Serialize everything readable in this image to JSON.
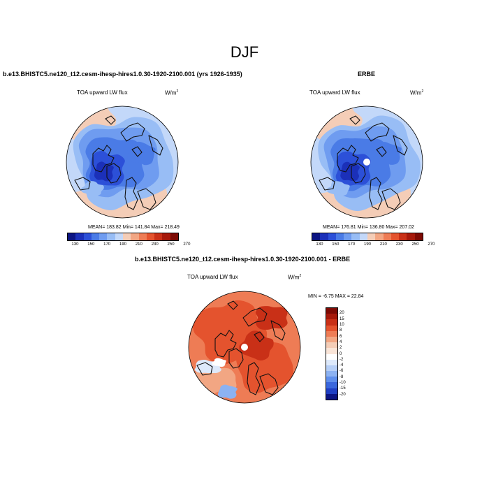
{
  "figure": {
    "title": "DJF"
  },
  "panels": [
    {
      "title": "b.e13.BHISTC5.ne120_t12.cesm-ihesp-hires1.0.30-1920-2100.001 (yrs 1926-1935)",
      "left_label": "TOA upward LW flux",
      "units_base": "W/m",
      "units_exp": "2",
      "stats": "MEAN= 183.82  Min= 141.84  Max= 218.49"
    },
    {
      "title": "ERBE",
      "left_label": "TOA upward LW flux",
      "units_base": "W/m",
      "units_exp": "2",
      "stats": "MEAN= 176.81  Min= 136.80  Max= 207.02"
    },
    {
      "title": "b.e13.BHISTC5.ne120_t12.cesm-ihesp-hires1.0.30-1920-2100.001 - ERBE",
      "left_label": "TOA upward LW flux",
      "units_base": "W/m",
      "units_exp": "2",
      "stats": "MIN =  -6.75 MAX =  22.84"
    }
  ],
  "colorbar_abs": {
    "colors": [
      "#0c1583",
      "#1b30b9",
      "#2c50d8",
      "#4a7be6",
      "#6f9cf0",
      "#98bdf5",
      "#c3d8f9",
      "#f4cdb7",
      "#f2a683",
      "#ee7c55",
      "#e4532e",
      "#c93017",
      "#a6190b",
      "#7d0a04"
    ],
    "ticks": [
      "130",
      "150",
      "170",
      "190",
      "210",
      "230",
      "250",
      "270"
    ]
  },
  "colorbar_diff": {
    "colors": [
      "#7d0a04",
      "#a6190b",
      "#c93017",
      "#e4532e",
      "#ee7c55",
      "#f2a683",
      "#f4cdb7",
      "#fae5d8",
      "#ffffff",
      "#dde9fb",
      "#b6cff7",
      "#8cb2f2",
      "#5f8fec",
      "#3a67dd",
      "#1f3fc4",
      "#0c1583"
    ],
    "ticks": [
      "20",
      "15",
      "10",
      "8",
      "6",
      "4",
      "2",
      "0",
      "-2",
      "-4",
      "-6",
      "-8",
      "-10",
      "-15",
      "-20"
    ]
  }
}
